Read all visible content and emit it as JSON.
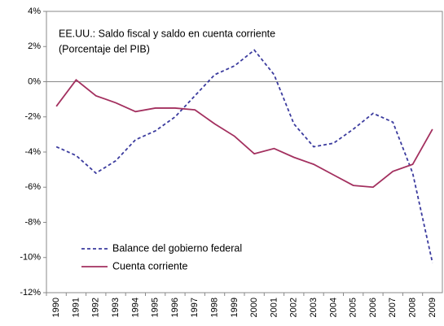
{
  "chart_data": {
    "type": "line",
    "title": "EE.UU.: Saldo fiscal y saldo en cuenta corriente",
    "subtitle": "(Porcentaje del PIB)",
    "categories": [
      "1990",
      "1991",
      "1992",
      "1993",
      "1994",
      "1995",
      "1996",
      "1997",
      "1998",
      "1999",
      "2000",
      "2001",
      "2002",
      "2003",
      "2004",
      "2005",
      "2006",
      "2007",
      "2008",
      "2009"
    ],
    "series": [
      {
        "name": "Balance del gobierno federal",
        "color": "#3b3b9e",
        "dashed": true,
        "values": [
          -3.7,
          -4.2,
          -5.2,
          -4.5,
          -3.3,
          -2.8,
          -2.0,
          -0.8,
          0.4,
          0.9,
          1.8,
          0.4,
          -2.4,
          -3.7,
          -3.5,
          -2.7,
          -1.8,
          -2.3,
          -5.2,
          -10.3
        ]
      },
      {
        "name": "Cuenta corriente",
        "color": "#a3305f",
        "dashed": false,
        "values": [
          -1.4,
          0.1,
          -0.8,
          -1.2,
          -1.7,
          -1.5,
          -1.5,
          -1.6,
          -2.4,
          -3.1,
          -4.1,
          -3.8,
          -4.3,
          -4.7,
          -5.3,
          -5.9,
          -6.0,
          -5.1,
          -4.7,
          -2.7
        ]
      }
    ],
    "ylim": [
      -12,
      4
    ],
    "yticks": [
      {
        "value": -12,
        "label": "-12%"
      },
      {
        "value": -10,
        "label": "-10%"
      },
      {
        "value": -8,
        "label": "-8%"
      },
      {
        "value": -6,
        "label": "-6%"
      },
      {
        "value": -4,
        "label": "-4%"
      },
      {
        "value": -2,
        "label": "-2%"
      },
      {
        "value": 0,
        "label": "0%"
      },
      {
        "value": 2,
        "label": "2%"
      },
      {
        "value": 4,
        "label": "4%"
      }
    ],
    "legend": "lower left",
    "grid": false
  }
}
